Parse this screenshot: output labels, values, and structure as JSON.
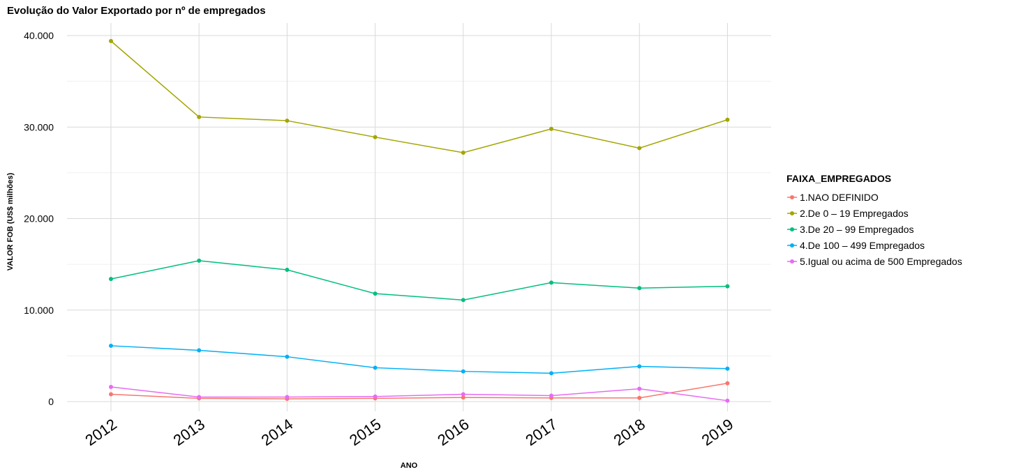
{
  "chart_data": {
    "type": "line",
    "title": "Evolução do Valor Exportado por nº de empregados",
    "xlabel": "ANO",
    "ylabel": "VALOR FOB (US$ milhões)",
    "x": [
      "2012",
      "2013",
      "2014",
      "2015",
      "2016",
      "2017",
      "2018",
      "2019"
    ],
    "ylim": [
      -1000,
      41500
    ],
    "yticks": [
      0,
      10000,
      20000,
      30000,
      40000
    ],
    "ytick_labels": [
      "0",
      "10.000",
      "20.000",
      "30.000",
      "40.000"
    ],
    "grid": true,
    "legend": {
      "title": "FAIXA_EMPREGADOS",
      "position": "right"
    },
    "series": [
      {
        "name": "1.NAO DEFINIDO",
        "color": "#F8766D",
        "values": [
          800,
          350,
          300,
          350,
          450,
          400,
          400,
          2000
        ]
      },
      {
        "name": "2.De 0 – 19 Empregados",
        "color": "#A3A500",
        "values": [
          39400,
          31100,
          30700,
          28900,
          27200,
          29800,
          27700,
          30800
        ]
      },
      {
        "name": "3.De 20 – 99 Empregados",
        "color": "#00BF7D",
        "values": [
          13400,
          15400,
          14400,
          11800,
          11100,
          13000,
          12400,
          12600
        ]
      },
      {
        "name": "4.De 100 – 499 Empregados",
        "color": "#00B0F6",
        "values": [
          6100,
          5600,
          4900,
          3700,
          3300,
          3100,
          3850,
          3600
        ]
      },
      {
        "name": "5.Igual ou acima de 500 Empregados",
        "color": "#E76BF3",
        "values": [
          1600,
          500,
          500,
          550,
          800,
          650,
          1400,
          100
        ]
      }
    ]
  }
}
